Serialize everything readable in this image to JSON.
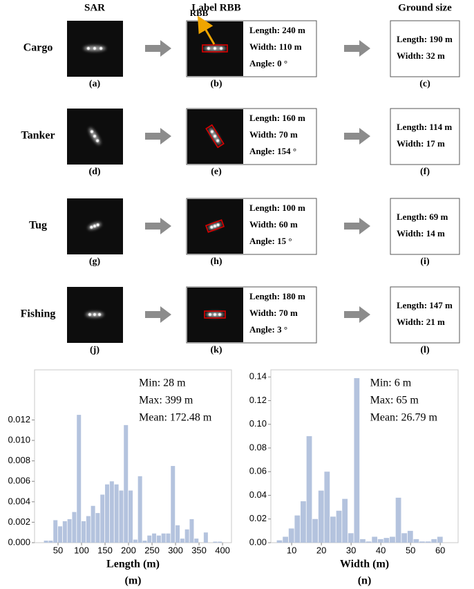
{
  "figure": {
    "columns": [
      "SAR",
      "Label RBB",
      "Ground size"
    ],
    "annotation": "RBB",
    "rows": [
      {
        "name": "Cargo",
        "sar_caption": "(a)",
        "label_caption": "(b)",
        "ground_caption": "(c)",
        "label_lines": [
          "Length: 240 m",
          "Width: 110 m",
          "Angle: 0 °"
        ],
        "ground_lines": [
          "Length: 190 m",
          "Width: 32 m"
        ]
      },
      {
        "name": "Tanker",
        "sar_caption": "(d)",
        "label_caption": "(e)",
        "ground_caption": "(f)",
        "label_lines": [
          "Length: 160 m",
          "Width: 70 m",
          "Angle: 154 °"
        ],
        "ground_lines": [
          "Length: 114 m",
          "Width: 17 m"
        ]
      },
      {
        "name": "Tug",
        "sar_caption": "(g)",
        "label_caption": "(h)",
        "ground_caption": "(i)",
        "label_lines": [
          "Length: 100 m",
          "Width: 60 m",
          "Angle: 15 °"
        ],
        "ground_lines": [
          "Length: 69 m",
          "Width: 14 m"
        ]
      },
      {
        "name": "Fishing",
        "sar_caption": "(j)",
        "label_caption": "(k)",
        "ground_caption": "(l)",
        "label_lines": [
          "Length: 180 m",
          "Width: 70 m",
          "Angle: 3 °"
        ],
        "ground_lines": [
          "Length: 147 m",
          "Width: 21 m"
        ]
      }
    ]
  },
  "chart_data": [
    {
      "type": "histogram",
      "xlabel": "Length (m)",
      "caption": "(m)",
      "stats": [
        "Min: 28 m",
        "Max: 399 m",
        "Mean: 172.48 m"
      ],
      "color": "#b4c3de",
      "bins": [
        20,
        30,
        40,
        50,
        60,
        70,
        80,
        90,
        100,
        110,
        120,
        130,
        140,
        150,
        160,
        170,
        180,
        190,
        200,
        210,
        220,
        230,
        240,
        250,
        260,
        270,
        280,
        290,
        300,
        310,
        320,
        330,
        340,
        350,
        360,
        370,
        380,
        390,
        400
      ],
      "values": [
        0.0002,
        0.0002,
        0.0022,
        0.0016,
        0.0021,
        0.0023,
        0.003,
        0.0125,
        0.0021,
        0.0026,
        0.0036,
        0.0029,
        0.0047,
        0.0057,
        0.006,
        0.0057,
        0.0051,
        0.0115,
        0.0051,
        0.0003,
        0.0065,
        0.0002,
        0.0007,
        0.0009,
        0.0007,
        0.0009,
        0.0009,
        0.0075,
        0.0017,
        0.0004,
        0.0013,
        0.0023,
        0.0004,
        0,
        0.001,
        0,
        0.0001,
        0.0001
      ],
      "xlim": [
        0,
        419
      ],
      "ylim": [
        0,
        0.0169
      ],
      "xticks": [
        50,
        100,
        150,
        200,
        250,
        300,
        350,
        400
      ],
      "yticks": [
        {
          "value": 0,
          "label": "0.000"
        },
        {
          "value": 0.002,
          "label": "0.002"
        },
        {
          "value": 0.004,
          "label": "0.004"
        },
        {
          "value": 0.006,
          "label": "0.006"
        },
        {
          "value": 0.008,
          "label": "0.008"
        },
        {
          "value": 0.01,
          "label": "0.010"
        },
        {
          "value": 0.012,
          "label": "0.012"
        }
      ]
    },
    {
      "type": "histogram",
      "xlabel": "Width (m)",
      "caption": "(n)",
      "stats": [
        "Min: 6 m",
        "Max: 65 m",
        "Mean: 26.79 m"
      ],
      "color": "#b4c3de",
      "bins": [
        5,
        7,
        9,
        11,
        13,
        15,
        17,
        19,
        21,
        23,
        25,
        27,
        29,
        31,
        33,
        35,
        37,
        39,
        41,
        43,
        45,
        47,
        49,
        51,
        53,
        55,
        57,
        59,
        61,
        63,
        65
      ],
      "values": [
        0.002,
        0.005,
        0.012,
        0.023,
        0.035,
        0.09,
        0.02,
        0.044,
        0.06,
        0.022,
        0.027,
        0.037,
        0.008,
        0.139,
        0.003,
        0.001,
        0.005,
        0.003,
        0.004,
        0.005,
        0.038,
        0.008,
        0.01,
        0.003,
        0.001,
        0.001,
        0.003,
        0.005,
        0,
        0
      ],
      "xlim": [
        3,
        66
      ],
      "ylim": [
        0,
        0.146
      ],
      "xticks": [
        10,
        20,
        30,
        40,
        50,
        60
      ],
      "yticks": [
        {
          "value": 0,
          "label": "0.00"
        },
        {
          "value": 0.02,
          "label": "0.02"
        },
        {
          "value": 0.04,
          "label": "0.04"
        },
        {
          "value": 0.06,
          "label": "0.06"
        },
        {
          "value": 0.08,
          "label": "0.08"
        },
        {
          "value": 0.1,
          "label": "0.10"
        },
        {
          "value": 0.12,
          "label": "0.12"
        },
        {
          "value": 0.14,
          "label": "0.14"
        }
      ]
    }
  ]
}
